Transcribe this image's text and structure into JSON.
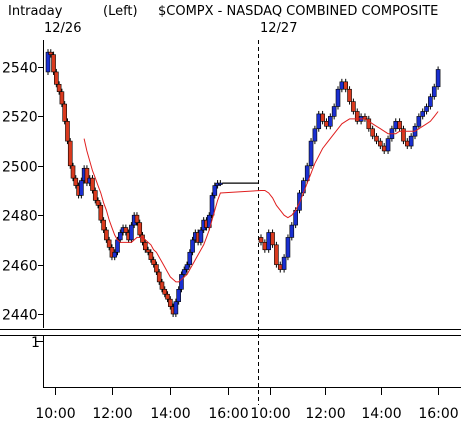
{
  "header": {
    "interval": "Intraday",
    "scale_side": "(Left)",
    "symbol_title": "$COMPX - NASDAQ COMBINED COMPOSITE"
  },
  "date_labels": [
    "12/26",
    "12/27"
  ],
  "volume_axis_label": "1",
  "colors": {
    "up": "#1a2fd1",
    "down": "#d93a1e",
    "ma": "#e02020",
    "grid": "#000000"
  },
  "chart_data": {
    "type": "candlestick",
    "title": "$COMPX - NASDAQ COMBINED COMPOSITE",
    "xlabel": "",
    "ylabel": "",
    "ylim": [
      2435,
      2550
    ],
    "y_ticks": [
      2440,
      2460,
      2480,
      2500,
      2520,
      2540
    ],
    "x_tick_labels": [
      "10:00",
      "12:00",
      "14:00",
      "16:00",
      "10:00",
      "12:00",
      "14:00",
      "16:00"
    ],
    "sessions": [
      "12/26",
      "12/27"
    ],
    "candles_open": [
      2538,
      2546,
      2545,
      2538,
      2533,
      2530,
      2525,
      2518,
      2510,
      2500,
      2495,
      2492,
      2488,
      2494,
      2499,
      2493,
      2495,
      2490,
      2486,
      2484,
      2478,
      2474,
      2470,
      2467,
      2463,
      2465,
      2470,
      2473,
      2475,
      2473,
      2470,
      2476,
      2480,
      2477,
      2472,
      2469,
      2466,
      2465,
      2462,
      2460,
      2457,
      2453,
      2450,
      2448,
      2446,
      2443,
      2440,
      2445,
      2450,
      2456,
      2458,
      2460,
      2465,
      2470,
      2473,
      2469,
      2474,
      2478,
      2475,
      2480,
      2488,
      2492,
      2493,
      2471,
      2469,
      2466,
      2473,
      2468,
      2460,
      2458,
      2463,
      2471,
      2476,
      2482,
      2489,
      2494,
      2500,
      2510,
      2515,
      2521,
      2518,
      2516,
      2520,
      2524,
      2531,
      2534,
      2531,
      2526,
      2522,
      2518,
      2520,
      2519,
      2515,
      2512,
      2510,
      2508,
      2506,
      2511,
      2515,
      2518,
      2515,
      2510,
      2508,
      2512,
      2516,
      2520,
      2522,
      2524,
      2528,
      2532
    ],
    "candles_close": [
      2546,
      2545,
      2538,
      2533,
      2530,
      2525,
      2518,
      2510,
      2500,
      2495,
      2492,
      2488,
      2494,
      2499,
      2493,
      2495,
      2490,
      2486,
      2484,
      2478,
      2474,
      2470,
      2467,
      2463,
      2465,
      2470,
      2473,
      2475,
      2473,
      2470,
      2476,
      2480,
      2477,
      2472,
      2469,
      2466,
      2465,
      2462,
      2460,
      2457,
      2453,
      2450,
      2448,
      2446,
      2443,
      2440,
      2445,
      2450,
      2456,
      2458,
      2460,
      2465,
      2470,
      2473,
      2469,
      2474,
      2478,
      2475,
      2480,
      2488,
      2492,
      2493,
      2493,
      2469,
      2466,
      2473,
      2468,
      2460,
      2458,
      2463,
      2471,
      2476,
      2482,
      2489,
      2494,
      2500,
      2510,
      2515,
      2521,
      2518,
      2516,
      2520,
      2524,
      2531,
      2534,
      2531,
      2526,
      2522,
      2518,
      2520,
      2519,
      2515,
      2512,
      2510,
      2508,
      2506,
      2511,
      2515,
      2518,
      2515,
      2510,
      2508,
      2512,
      2516,
      2520,
      2522,
      2524,
      2528,
      2532,
      2539
    ],
    "moving_average": [
      null,
      null,
      null,
      null,
      null,
      null,
      null,
      null,
      null,
      null,
      null,
      null,
      null,
      2511,
      2506,
      2502,
      2498,
      2495,
      2492,
      2489,
      2485,
      2482,
      2478,
      2475,
      2472,
      2470,
      2469,
      2469,
      2469,
      2469,
      2469,
      2470,
      2471,
      2471,
      2471,
      2470,
      2469,
      2468,
      2466,
      2465,
      2463,
      2461,
      2459,
      2457,
      2455,
      2454,
      2453,
      2453,
      2454,
      2455,
      2456,
      2458,
      2460,
      2462,
      2464,
      2466,
      2468,
      2471,
      2474,
      2478,
      2482,
      2486,
      2489,
      2490,
      2490,
      2489,
      2487,
      2484,
      2482,
      2480,
      2479,
      2480,
      2482,
      2485,
      2489,
      2493,
      2497,
      2501,
      2504,
      2507,
      2509,
      2511,
      2513,
      2515,
      2517,
      2518,
      2519,
      2519,
      2519,
      2519,
      2519,
      2518,
      2517,
      2516,
      2515,
      2514,
      2513,
      2513,
      2513,
      2514,
      2514,
      2514,
      2514,
      2514,
      2515,
      2516,
      2517,
      2518,
      2520,
      2522
    ]
  }
}
